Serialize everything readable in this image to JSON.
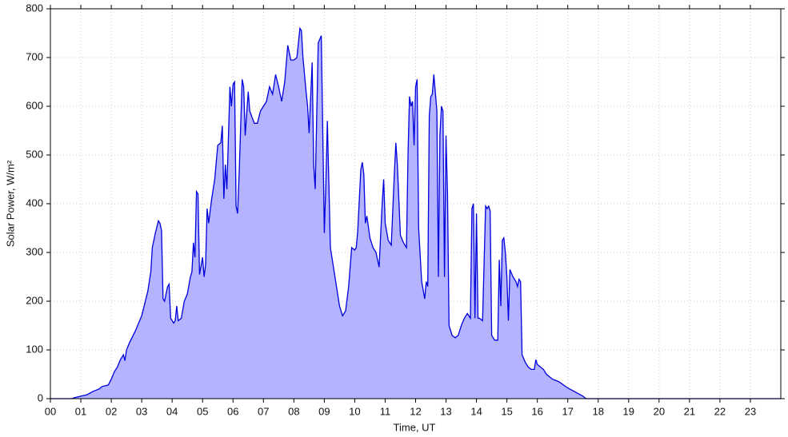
{
  "chart_data": {
    "type": "area",
    "xlabel": "Time, UT",
    "ylabel": "Solar Power, W/m²",
    "color": "#0000dd",
    "fill_color": "#b3b3ff",
    "grid": true,
    "xlim": [
      0,
      24
    ],
    "ylim": [
      0,
      800
    ],
    "xticks": [
      {
        "value": 0,
        "label": "00"
      },
      {
        "value": 1,
        "label": "01"
      },
      {
        "value": 2,
        "label": "02"
      },
      {
        "value": 3,
        "label": "03"
      },
      {
        "value": 4,
        "label": "04"
      },
      {
        "value": 5,
        "label": "05"
      },
      {
        "value": 6,
        "label": "06"
      },
      {
        "value": 7,
        "label": "07"
      },
      {
        "value": 8,
        "label": "08"
      },
      {
        "value": 9,
        "label": "09"
      },
      10,
      11,
      12,
      13,
      14,
      15,
      16,
      17,
      18,
      19,
      20,
      21,
      22,
      23
    ],
    "yticks": [
      0,
      100,
      200,
      300,
      400,
      500,
      600,
      700,
      800
    ],
    "x": [
      0,
      0.7,
      0.8,
      1.0,
      1.2,
      1.4,
      1.6,
      1.7,
      1.9,
      2.0,
      2.1,
      2.2,
      2.3,
      2.4,
      2.45,
      2.5,
      2.6,
      2.8,
      3.0,
      3.1,
      3.2,
      3.3,
      3.35,
      3.45,
      3.55,
      3.6,
      3.65,
      3.7,
      3.75,
      3.85,
      3.9,
      3.95,
      4.05,
      4.1,
      4.15,
      4.2,
      4.3,
      4.4,
      4.5,
      4.6,
      4.65,
      4.7,
      4.75,
      4.8,
      4.85,
      4.9,
      5.0,
      5.05,
      5.1,
      5.15,
      5.2,
      5.3,
      5.4,
      5.5,
      5.6,
      5.65,
      5.7,
      5.75,
      5.8,
      5.9,
      5.95,
      6.0,
      6.05,
      6.1,
      6.15,
      6.2,
      6.3,
      6.35,
      6.4,
      6.5,
      6.55,
      6.7,
      6.8,
      6.9,
      7.0,
      7.1,
      7.2,
      7.3,
      7.4,
      7.5,
      7.6,
      7.7,
      7.8,
      7.9,
      8.0,
      8.1,
      8.2,
      8.25,
      8.3,
      8.4,
      8.45,
      8.5,
      8.6,
      8.65,
      8.7,
      8.8,
      8.9,
      9.0,
      9.05,
      9.1,
      9.2,
      9.3,
      9.4,
      9.5,
      9.6,
      9.7,
      9.8,
      9.9,
      10.0,
      10.05,
      10.1,
      10.2,
      10.25,
      10.3,
      10.35,
      10.4,
      10.5,
      10.6,
      10.7,
      10.8,
      10.9,
      10.95,
      11.0,
      11.1,
      11.2,
      11.3,
      11.35,
      11.4,
      11.5,
      11.6,
      11.7,
      11.75,
      11.8,
      11.85,
      11.9,
      11.95,
      12.0,
      12.05,
      12.1,
      12.2,
      12.3,
      12.35,
      12.4,
      12.45,
      12.5,
      12.55,
      12.6,
      12.7,
      12.75,
      12.8,
      12.85,
      12.9,
      12.95,
      13.0,
      13.05,
      13.1,
      13.2,
      13.3,
      13.4,
      13.5,
      13.6,
      13.7,
      13.8,
      13.85,
      13.9,
      13.95,
      14.0,
      14.05,
      14.1,
      14.2,
      14.3,
      14.35,
      14.4,
      14.45,
      14.5,
      14.6,
      14.7,
      14.75,
      14.8,
      14.85,
      14.9,
      14.95,
      15.0,
      15.05,
      15.1,
      15.2,
      15.3,
      15.35,
      15.4,
      15.45,
      15.5,
      15.6,
      15.7,
      15.8,
      15.9,
      15.95,
      16.0,
      16.2,
      16.3,
      16.5,
      16.7,
      17.0,
      17.3,
      17.5,
      17.6,
      24.0
    ],
    "values": [
      0,
      0,
      2,
      5,
      8,
      15,
      20,
      25,
      28,
      40,
      55,
      65,
      80,
      90,
      78,
      100,
      115,
      140,
      170,
      195,
      220,
      260,
      310,
      340,
      365,
      360,
      345,
      205,
      200,
      230,
      235,
      165,
      155,
      160,
      190,
      160,
      165,
      200,
      215,
      250,
      260,
      320,
      290,
      425,
      420,
      255,
      290,
      250,
      275,
      390,
      360,
      410,
      450,
      520,
      525,
      560,
      410,
      480,
      430,
      640,
      600,
      645,
      650,
      395,
      380,
      460,
      655,
      640,
      540,
      630,
      590,
      565,
      565,
      590,
      600,
      610,
      640,
      625,
      665,
      640,
      610,
      650,
      725,
      695,
      695,
      700,
      760,
      755,
      700,
      630,
      600,
      545,
      690,
      480,
      430,
      730,
      745,
      340,
      440,
      570,
      310,
      270,
      230,
      190,
      170,
      180,
      230,
      310,
      305,
      310,
      345,
      470,
      485,
      460,
      360,
      375,
      330,
      310,
      300,
      270,
      400,
      450,
      360,
      325,
      315,
      460,
      525,
      480,
      335,
      320,
      310,
      500,
      620,
      600,
      610,
      520,
      640,
      655,
      350,
      240,
      205,
      240,
      230,
      580,
      620,
      625,
      665,
      590,
      250,
      540,
      600,
      590,
      250,
      540,
      420,
      150,
      130,
      125,
      130,
      150,
      165,
      175,
      165,
      390,
      400,
      165,
      380,
      165,
      165,
      160,
      395,
      390,
      395,
      385,
      130,
      120,
      120,
      285,
      190,
      325,
      330,
      300,
      250,
      160,
      265,
      250,
      240,
      230,
      245,
      240,
      90,
      75,
      65,
      60,
      60,
      80,
      70,
      60,
      50,
      40,
      35,
      22,
      12,
      5,
      0,
      0
    ]
  }
}
